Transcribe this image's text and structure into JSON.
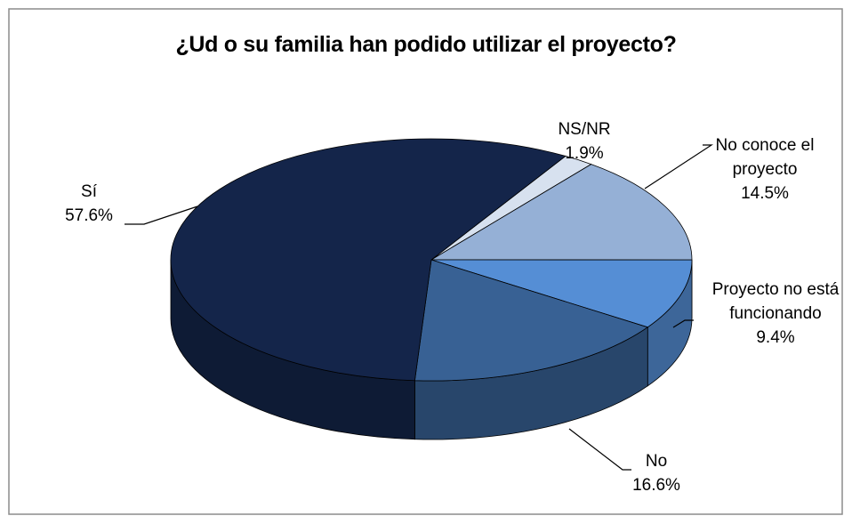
{
  "chart_data": {
    "type": "pie",
    "title": "¿Ud o su familia han podido utilizar el proyecto?",
    "categories": [
      "NS/NR",
      "No conoce el proyecto",
      "Proyecto no está funcionando",
      "No",
      "Sí"
    ],
    "values": [
      1.9,
      14.5,
      9.4,
      16.6,
      57.6
    ],
    "value_labels": [
      "1.9%",
      "14.5%",
      "9.4%",
      "16.6%",
      "57.6%"
    ],
    "colors": [
      "#d7e1ef",
      "#95b0d6",
      "#558ed5",
      "#386194",
      "#14254a"
    ]
  }
}
